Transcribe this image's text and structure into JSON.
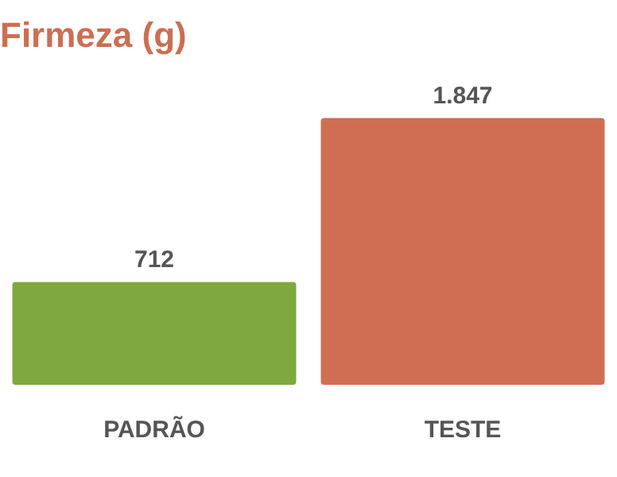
{
  "chart_data": {
    "type": "bar",
    "title": "Firmeza (g)",
    "categories": [
      "PADRÃO",
      "TESTE"
    ],
    "values": [
      712,
      1847
    ],
    "colors": [
      "#7fa83f",
      "#cf6e52"
    ],
    "value_labels": [
      "712",
      "1.847"
    ],
    "grid": false,
    "legend": false
  }
}
